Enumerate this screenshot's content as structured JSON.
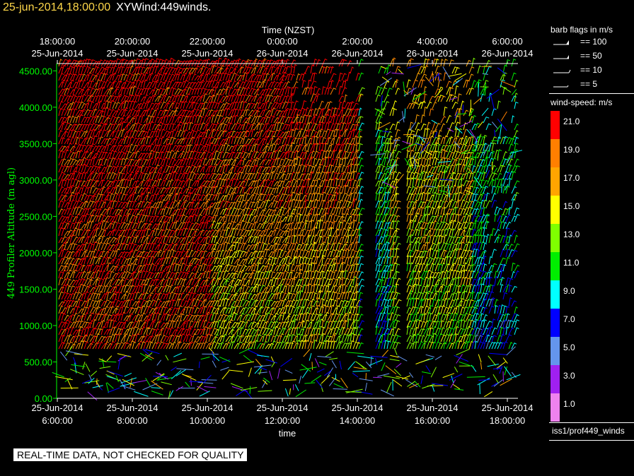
{
  "header": {
    "datetime": "25-jun-2014,18:00:00",
    "product": "XYWind:449winds."
  },
  "legend": {
    "flags_title": "barb flags in m/s",
    "flags": [
      {
        "label": "== 100"
      },
      {
        "label": "== 50"
      },
      {
        "label": "== 10"
      },
      {
        "label": "== 5"
      }
    ],
    "speed_title": "wind-speed: m/s",
    "colors": [
      {
        "value": "21.0",
        "color": "#ff0000"
      },
      {
        "value": "19.0",
        "color": "#ff7f00"
      },
      {
        "value": "17.0",
        "color": "#ffa500"
      },
      {
        "value": "15.0",
        "color": "#ffff00"
      },
      {
        "value": "13.0",
        "color": "#7fff00"
      },
      {
        "value": "11.0",
        "color": "#00ee00"
      },
      {
        "value": "9.0",
        "color": "#00ffff"
      },
      {
        "value": "7.0",
        "color": "#0000ff"
      },
      {
        "value": "5.0",
        "color": "#6495ed"
      },
      {
        "value": "3.0",
        "color": "#a020f0"
      },
      {
        "value": "1.0",
        "color": "#ee82ee"
      }
    ],
    "instrument": "iss1/prof449_winds"
  },
  "warning": "REAL-TIME DATA, NOT CHECKED FOR QUALITY",
  "chart_data": {
    "type": "wind-barb time-height plot",
    "top_axis_title": "Time (NZST)",
    "bottom_axis_title": "time",
    "ylabel": "449 Profiler Altitude (m agl)",
    "ylim": [
      0,
      4600
    ],
    "y_ticks": [
      "0.00",
      "500.00",
      "1000.00",
      "1500.00",
      "2000.00",
      "2500.00",
      "3000.00",
      "3500.00",
      "4000.00",
      "4500.00"
    ],
    "y_tick_values": [
      0,
      500,
      1000,
      1500,
      2000,
      2500,
      3000,
      3500,
      4000,
      4500
    ],
    "x_range_utc": [
      "25-Jun-2014 6:00:00",
      "25-Jun-2014 18:00:00"
    ],
    "bottom_ticks": [
      {
        "date": "25-Jun-2014",
        "time": "6:00:00"
      },
      {
        "date": "25-Jun-2014",
        "time": "8:00:00"
      },
      {
        "date": "25-Jun-2014",
        "time": "10:00:00"
      },
      {
        "date": "25-Jun-2014",
        "time": "12:00:00"
      },
      {
        "date": "25-Jun-2014",
        "time": "14:00:00"
      },
      {
        "date": "25-Jun-2014",
        "time": "16:00:00"
      },
      {
        "date": "25-Jun-2014",
        "time": "18:00:00"
      }
    ],
    "top_ticks": [
      {
        "time": "18:00:00",
        "date": "25-Jun-2014"
      },
      {
        "time": "20:00:00",
        "date": "25-Jun-2014"
      },
      {
        "time": "22:00:00",
        "date": "25-Jun-2014"
      },
      {
        "time": "0:00:00",
        "date": "26-Jun-2014"
      },
      {
        "time": "2:00:00",
        "date": "26-Jun-2014"
      },
      {
        "time": "4:00:00",
        "date": "26-Jun-2014"
      },
      {
        "time": "6:00:00",
        "date": "26-Jun-2014"
      }
    ]
  }
}
